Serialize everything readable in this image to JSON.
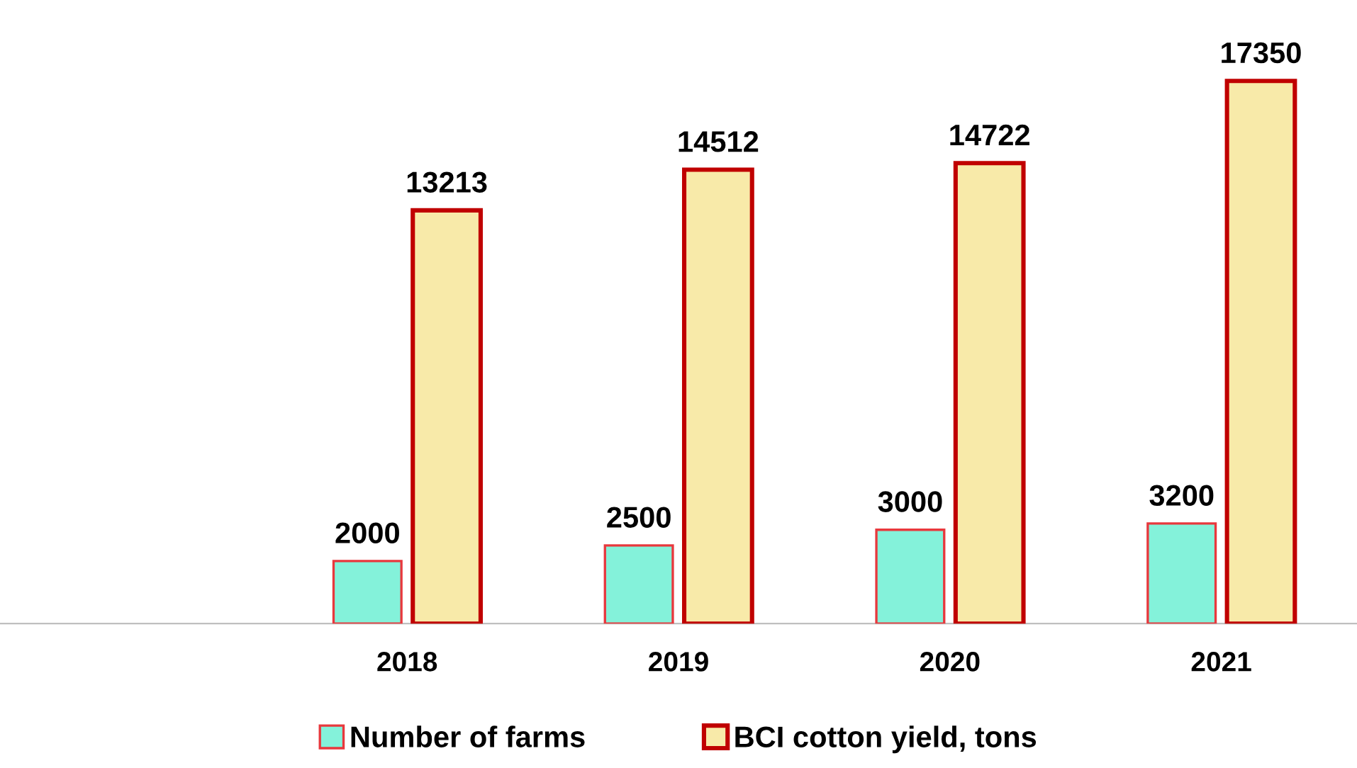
{
  "chart_data": {
    "type": "bar",
    "categories": [
      null,
      "2018",
      "2019",
      "2020",
      "2021"
    ],
    "series": [
      {
        "name": "Number of farms",
        "color": "#84f2da",
        "values": [
          null,
          2000,
          2500,
          3000,
          3200
        ]
      },
      {
        "name": "BCI cotton yield, tons",
        "color": "#f8eaa9",
        "values": [
          null,
          13213,
          14512,
          14722,
          17350
        ]
      }
    ],
    "tick_labels": "x",
    "data_labels": true,
    "legend": "bottom",
    "grid": false
  }
}
